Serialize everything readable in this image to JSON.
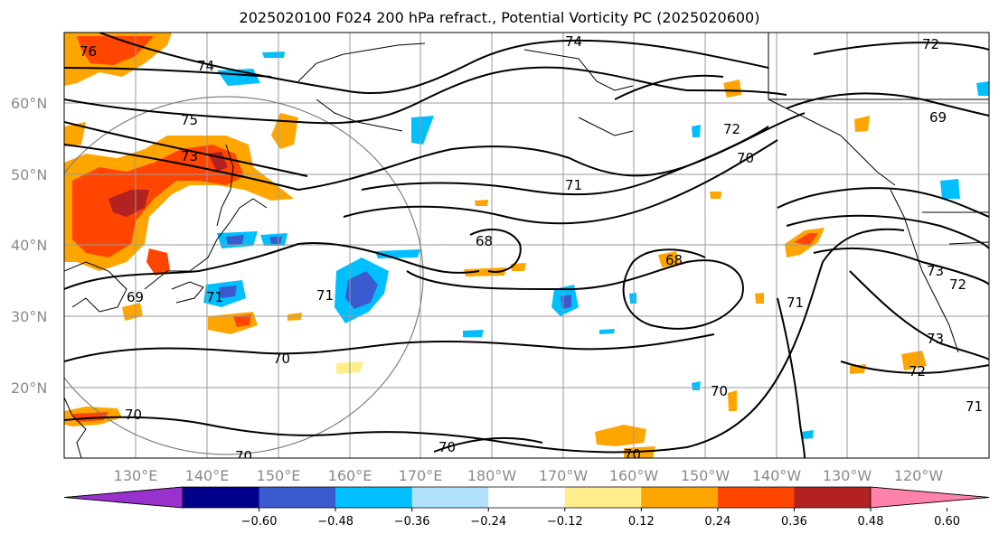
{
  "title": "2025020100 F024 200 hPa refract., Potential Vorticity PC (2025020600)",
  "lat_labels": [
    "60°N",
    "50°N",
    "40°N",
    "30°N",
    "20°N"
  ],
  "lon_labels": [
    "130°E",
    "140°E",
    "150°E",
    "160°E",
    "170°E",
    "180°W",
    "170°W",
    "160°W",
    "150°W",
    "140°W",
    "130°W",
    "120°W"
  ],
  "colorbar": {
    "ticks": [
      "−0.60",
      "−0.48",
      "−0.36",
      "−0.24",
      "−0.12",
      "0.12",
      "0.24",
      "0.36",
      "0.48",
      "0.60"
    ],
    "colors": [
      "#9932cc",
      "#00008b",
      "#3a5bcf",
      "#00bfff",
      "#b0e2ff",
      "#ffffff",
      "#ffec8b",
      "#ffa500",
      "#ff4500",
      "#b22222",
      "#ff82ab"
    ]
  },
  "contour_labels": [
    "74",
    "72",
    "76",
    "74",
    "75",
    "73",
    "72",
    "70",
    "71",
    "69",
    "68",
    "68",
    "71",
    "71",
    "69",
    "70",
    "70",
    "70",
    "70",
    "70",
    "70",
    "71",
    "73",
    "72",
    "71",
    "73",
    "72"
  ]
}
